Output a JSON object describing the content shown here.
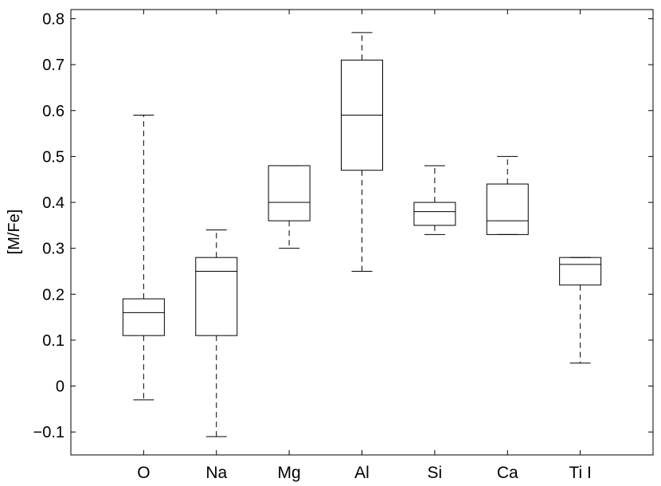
{
  "chart_data": {
    "type": "boxplot",
    "title": "",
    "xlabel": "",
    "ylabel": "[M/Fe]",
    "ylim": [
      -0.15,
      0.82
    ],
    "yticks": [
      -0.1,
      0,
      0.1,
      0.2,
      0.3,
      0.4,
      0.5,
      0.6,
      0.7,
      0.8
    ],
    "ytick_labels": [
      "−0.1",
      "0",
      "0.1",
      "0.2",
      "0.3",
      "0.4",
      "0.5",
      "0.6",
      "0.7",
      "0.8"
    ],
    "grid": false,
    "categories": [
      "O",
      "Na",
      "Mg",
      "Al",
      "Si",
      "Ca",
      "Ti I"
    ],
    "boxes": [
      {
        "label": "O",
        "whisker_low": -0.03,
        "q1": 0.11,
        "median": 0.16,
        "q3": 0.19,
        "whisker_high": 0.59
      },
      {
        "label": "Na",
        "whisker_low": -0.11,
        "q1": 0.11,
        "median": 0.25,
        "q3": 0.28,
        "whisker_high": 0.34
      },
      {
        "label": "Mg",
        "whisker_low": 0.3,
        "q1": 0.36,
        "median": 0.4,
        "q3": 0.48,
        "whisker_high": 0.48
      },
      {
        "label": "Al",
        "whisker_low": 0.25,
        "q1": 0.47,
        "median": 0.59,
        "q3": 0.71,
        "whisker_high": 0.77
      },
      {
        "label": "Si",
        "whisker_low": 0.33,
        "q1": 0.35,
        "median": 0.38,
        "q3": 0.4,
        "whisker_high": 0.48
      },
      {
        "label": "Ca",
        "whisker_low": 0.33,
        "q1": 0.33,
        "median": 0.36,
        "q3": 0.44,
        "whisker_high": 0.5
      },
      {
        "label": "Ti I",
        "whisker_low": 0.05,
        "q1": 0.22,
        "median": 0.265,
        "q3": 0.28,
        "whisker_high": 0.28
      }
    ]
  }
}
